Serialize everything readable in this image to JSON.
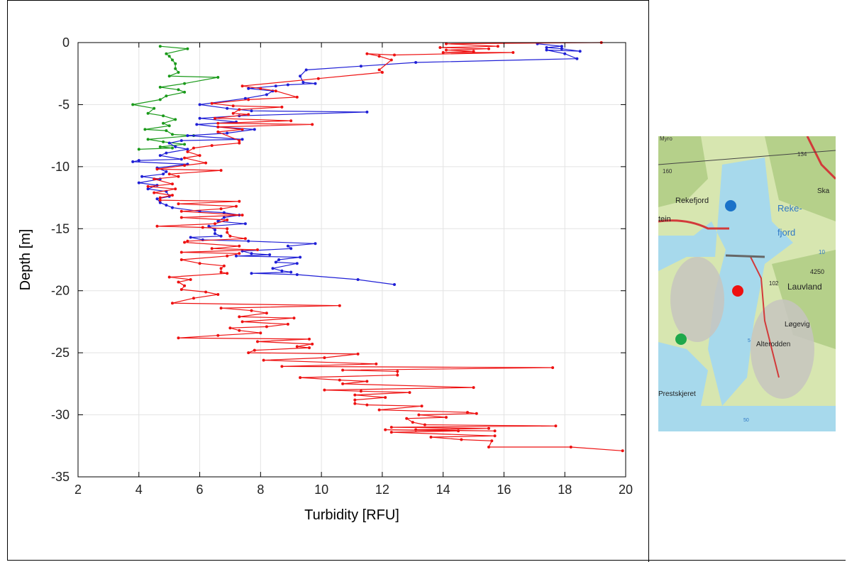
{
  "chart_data": {
    "type": "line",
    "xlabel": "Turbidity [RFU]",
    "ylabel": "Depth [m]",
    "xlim": [
      2,
      20
    ],
    "ylim": [
      -35,
      0
    ],
    "xticks": [
      2,
      4,
      6,
      8,
      10,
      12,
      14,
      16,
      18,
      20
    ],
    "yticks": [
      0,
      -5,
      -10,
      -15,
      -20,
      -25,
      -30,
      -35
    ],
    "grid": true,
    "series": [
      {
        "color": "#1a9a1a",
        "points": [
          [
            4.7,
            -0.3
          ],
          [
            5.6,
            -0.5
          ],
          [
            4.9,
            -0.9
          ],
          [
            5.0,
            -1.1
          ],
          [
            5.1,
            -1.4
          ],
          [
            5.2,
            -1.7
          ],
          [
            5.2,
            -2.1
          ],
          [
            5.3,
            -2.4
          ],
          [
            5.0,
            -2.7
          ],
          [
            6.6,
            -2.8
          ],
          [
            5.5,
            -3.3
          ],
          [
            4.7,
            -3.6
          ],
          [
            5.3,
            -3.8
          ],
          [
            5.5,
            -4.0
          ],
          [
            4.9,
            -4.3
          ],
          [
            4.7,
            -4.6
          ],
          [
            3.8,
            -5.0
          ],
          [
            4.5,
            -5.3
          ],
          [
            4.3,
            -5.7
          ],
          [
            4.8,
            -5.9
          ],
          [
            5.2,
            -6.2
          ],
          [
            4.8,
            -6.5
          ],
          [
            5.0,
            -6.7
          ],
          [
            4.2,
            -7.0
          ],
          [
            4.9,
            -7.1
          ],
          [
            5.1,
            -7.4
          ],
          [
            5.8,
            -7.5
          ],
          [
            4.3,
            -7.8
          ],
          [
            4.8,
            -8.0
          ],
          [
            5.5,
            -8.2
          ],
          [
            4.7,
            -8.4
          ],
          [
            5.1,
            -8.5
          ],
          [
            4.0,
            -8.6
          ]
        ]
      },
      {
        "color": "#1f1fd6",
        "points": [
          [
            17.1,
            -0.1
          ],
          [
            17.9,
            -0.3
          ],
          [
            17.4,
            -0.4
          ],
          [
            17.9,
            -0.5
          ],
          [
            18.5,
            -0.7
          ],
          [
            17.4,
            -0.6
          ],
          [
            18.0,
            -0.9
          ],
          [
            18.4,
            -1.3
          ],
          [
            13.1,
            -1.6
          ],
          [
            11.3,
            -1.9
          ],
          [
            9.5,
            -2.2
          ],
          [
            9.3,
            -2.7
          ],
          [
            9.4,
            -3.2
          ],
          [
            9.8,
            -3.3
          ],
          [
            8.9,
            -3.4
          ],
          [
            8.5,
            -3.5
          ],
          [
            7.6,
            -3.7
          ],
          [
            8.4,
            -3.9
          ],
          [
            8.2,
            -4.2
          ],
          [
            7.5,
            -4.5
          ],
          [
            6.0,
            -5.0
          ],
          [
            6.9,
            -5.3
          ],
          [
            7.7,
            -5.5
          ],
          [
            11.5,
            -5.6
          ],
          [
            7.3,
            -5.9
          ],
          [
            6.0,
            -6.1
          ],
          [
            7.2,
            -6.4
          ],
          [
            5.9,
            -6.6
          ],
          [
            6.6,
            -6.8
          ],
          [
            7.8,
            -7.0
          ],
          [
            6.9,
            -7.3
          ],
          [
            5.6,
            -7.5
          ],
          [
            7.4,
            -7.8
          ],
          [
            5.4,
            -7.9
          ],
          [
            5.0,
            -8.1
          ],
          [
            5.2,
            -8.4
          ],
          [
            5.6,
            -8.6
          ],
          [
            4.9,
            -8.9
          ],
          [
            4.7,
            -9.1
          ],
          [
            5.4,
            -9.4
          ],
          [
            4.0,
            -9.5
          ],
          [
            3.8,
            -9.6
          ],
          [
            5.6,
            -9.8
          ],
          [
            4.6,
            -10.1
          ],
          [
            4.9,
            -10.4
          ],
          [
            4.8,
            -10.6
          ],
          [
            4.1,
            -10.8
          ],
          [
            4.7,
            -11.0
          ],
          [
            4.0,
            -11.3
          ],
          [
            4.6,
            -11.5
          ],
          [
            4.3,
            -11.8
          ],
          [
            4.9,
            -12.0
          ],
          [
            5.0,
            -12.4
          ],
          [
            4.6,
            -12.6
          ],
          [
            4.7,
            -12.9
          ],
          [
            4.9,
            -13.1
          ],
          [
            5.1,
            -13.3
          ],
          [
            6.0,
            -13.6
          ],
          [
            6.8,
            -13.7
          ],
          [
            7.3,
            -13.9
          ],
          [
            6.8,
            -14.1
          ],
          [
            6.6,
            -14.4
          ],
          [
            7.5,
            -14.6
          ],
          [
            6.3,
            -14.8
          ],
          [
            6.5,
            -15.1
          ],
          [
            6.5,
            -15.4
          ],
          [
            6.7,
            -15.6
          ],
          [
            5.7,
            -15.7
          ],
          [
            6.1,
            -15.9
          ],
          [
            7.6,
            -16.0
          ],
          [
            9.8,
            -16.2
          ],
          [
            8.9,
            -16.4
          ],
          [
            9.0,
            -16.6
          ],
          [
            7.4,
            -16.8
          ],
          [
            7.7,
            -17.0
          ],
          [
            8.3,
            -17.1
          ],
          [
            7.2,
            -17.2
          ],
          [
            9.3,
            -17.3
          ],
          [
            8.6,
            -17.5
          ],
          [
            8.5,
            -17.7
          ],
          [
            9.2,
            -17.8
          ],
          [
            8.4,
            -18.2
          ],
          [
            8.7,
            -18.4
          ],
          [
            9.0,
            -18.5
          ],
          [
            7.7,
            -18.6
          ],
          [
            9.2,
            -18.7
          ],
          [
            11.2,
            -19.1
          ],
          [
            12.4,
            -19.5
          ]
        ]
      },
      {
        "color": "#ee1111",
        "points": [
          [
            19.2,
            0.0
          ],
          [
            14.1,
            -0.1
          ],
          [
            15.8,
            -0.3
          ],
          [
            13.9,
            -0.4
          ],
          [
            15.5,
            -0.5
          ],
          [
            14.1,
            -0.6
          ],
          [
            15.0,
            -0.7
          ],
          [
            14.0,
            -0.8
          ],
          [
            16.3,
            -0.8
          ],
          [
            12.4,
            -1.0
          ],
          [
            11.5,
            -0.9
          ],
          [
            11.9,
            -1.1
          ],
          [
            12.3,
            -1.4
          ],
          [
            11.9,
            -2.2
          ],
          [
            12.0,
            -2.4
          ],
          [
            9.9,
            -2.9
          ],
          [
            7.4,
            -3.5
          ],
          [
            8.0,
            -3.7
          ],
          [
            8.5,
            -3.9
          ],
          [
            9.2,
            -4.4
          ],
          [
            7.6,
            -4.6
          ],
          [
            6.4,
            -4.9
          ],
          [
            7.1,
            -5.1
          ],
          [
            8.7,
            -5.2
          ],
          [
            7.3,
            -5.4
          ],
          [
            7.1,
            -5.7
          ],
          [
            7.6,
            -5.8
          ],
          [
            6.5,
            -6.1
          ],
          [
            9.0,
            -6.3
          ],
          [
            6.6,
            -6.5
          ],
          [
            9.7,
            -6.6
          ],
          [
            6.6,
            -6.8
          ],
          [
            7.4,
            -7.0
          ],
          [
            6.6,
            -7.2
          ],
          [
            7.3,
            -7.9
          ],
          [
            7.3,
            -8.1
          ],
          [
            6.4,
            -8.3
          ],
          [
            5.8,
            -8.5
          ],
          [
            5.6,
            -8.8
          ],
          [
            6.0,
            -9.1
          ],
          [
            5.5,
            -9.3
          ],
          [
            6.2,
            -9.7
          ],
          [
            5.5,
            -9.9
          ],
          [
            4.6,
            -10.2
          ],
          [
            6.7,
            -10.3
          ],
          [
            5.0,
            -10.6
          ],
          [
            5.3,
            -10.8
          ],
          [
            4.5,
            -11.0
          ],
          [
            5.1,
            -11.4
          ],
          [
            4.3,
            -11.6
          ],
          [
            5.2,
            -11.8
          ],
          [
            4.5,
            -12.1
          ],
          [
            5.1,
            -12.3
          ],
          [
            4.7,
            -12.5
          ],
          [
            4.7,
            -12.7
          ],
          [
            7.3,
            -12.8
          ],
          [
            5.3,
            -13.0
          ],
          [
            7.2,
            -13.2
          ],
          [
            6.7,
            -13.4
          ],
          [
            5.4,
            -13.6
          ],
          [
            7.4,
            -13.9
          ],
          [
            5.4,
            -14.1
          ],
          [
            6.9,
            -14.3
          ],
          [
            6.5,
            -14.6
          ],
          [
            4.6,
            -14.8
          ],
          [
            6.1,
            -14.9
          ],
          [
            6.9,
            -15.0
          ],
          [
            6.9,
            -15.3
          ],
          [
            7.0,
            -15.6
          ],
          [
            7.5,
            -15.8
          ],
          [
            5.6,
            -16.0
          ],
          [
            5.5,
            -16.1
          ],
          [
            7.3,
            -16.4
          ],
          [
            6.4,
            -16.6
          ],
          [
            7.9,
            -16.7
          ],
          [
            5.4,
            -16.9
          ],
          [
            7.3,
            -17.0
          ],
          [
            6.9,
            -17.2
          ],
          [
            5.4,
            -17.5
          ],
          [
            6.0,
            -17.8
          ],
          [
            6.8,
            -18.0
          ],
          [
            6.7,
            -18.2
          ],
          [
            6.7,
            -18.5
          ],
          [
            6.9,
            -18.6
          ],
          [
            5.0,
            -18.9
          ],
          [
            5.7,
            -19.1
          ],
          [
            5.3,
            -19.3
          ],
          [
            5.5,
            -19.6
          ],
          [
            5.4,
            -19.9
          ],
          [
            6.2,
            -20.1
          ],
          [
            6.6,
            -20.3
          ],
          [
            5.8,
            -20.6
          ],
          [
            5.1,
            -21.0
          ],
          [
            10.6,
            -21.2
          ],
          [
            6.7,
            -21.4
          ],
          [
            7.7,
            -21.6
          ],
          [
            8.2,
            -21.8
          ],
          [
            7.3,
            -22.1
          ],
          [
            9.1,
            -22.2
          ],
          [
            7.4,
            -22.5
          ],
          [
            8.9,
            -22.7
          ],
          [
            8.2,
            -22.9
          ],
          [
            7.0,
            -23.0
          ],
          [
            7.3,
            -23.2
          ],
          [
            8.0,
            -23.4
          ],
          [
            6.6,
            -23.6
          ],
          [
            5.3,
            -23.8
          ],
          [
            9.6,
            -23.9
          ],
          [
            7.9,
            -24.1
          ],
          [
            9.7,
            -24.3
          ],
          [
            9.2,
            -24.5
          ],
          [
            9.6,
            -24.6
          ],
          [
            7.8,
            -24.8
          ],
          [
            7.6,
            -25.0
          ],
          [
            11.2,
            -25.1
          ],
          [
            10.1,
            -25.4
          ],
          [
            8.1,
            -25.6
          ],
          [
            11.8,
            -25.9
          ],
          [
            8.7,
            -26.1
          ],
          [
            17.6,
            -26.2
          ],
          [
            10.7,
            -26.4
          ],
          [
            12.5,
            -26.5
          ],
          [
            12.5,
            -26.8
          ],
          [
            9.3,
            -27.0
          ],
          [
            10.6,
            -27.2
          ],
          [
            11.5,
            -27.3
          ],
          [
            10.7,
            -27.5
          ],
          [
            15.0,
            -27.8
          ],
          [
            10.1,
            -28.0
          ],
          [
            11.3,
            -28.1
          ],
          [
            12.9,
            -28.2
          ],
          [
            11.1,
            -28.4
          ],
          [
            12.1,
            -28.6
          ],
          [
            11.1,
            -28.8
          ],
          [
            11.1,
            -29.1
          ],
          [
            11.5,
            -29.2
          ],
          [
            13.3,
            -29.3
          ],
          [
            11.9,
            -29.6
          ],
          [
            14.8,
            -29.8
          ],
          [
            15.1,
            -29.9
          ],
          [
            13.2,
            -30.0
          ],
          [
            14.1,
            -30.2
          ],
          [
            12.8,
            -30.3
          ],
          [
            13.0,
            -30.6
          ],
          [
            13.4,
            -30.8
          ],
          [
            17.7,
            -30.9
          ],
          [
            12.3,
            -31.0
          ],
          [
            15.5,
            -31.1
          ],
          [
            13.1,
            -31.2
          ],
          [
            15.7,
            -31.3
          ],
          [
            12.1,
            -31.2
          ],
          [
            14.5,
            -31.3
          ],
          [
            12.3,
            -31.4
          ],
          [
            15.7,
            -31.7
          ],
          [
            13.6,
            -31.8
          ],
          [
            14.6,
            -32.0
          ],
          [
            15.6,
            -32.1
          ],
          [
            15.5,
            -32.6
          ],
          [
            18.2,
            -32.6
          ],
          [
            19.9,
            -32.9
          ]
        ]
      }
    ],
    "legend_markers": [
      {
        "color": "#1a72c9",
        "label": ""
      },
      {
        "color": "#ee1111",
        "label": ""
      },
      {
        "color": "#1ea84b",
        "label": ""
      }
    ]
  },
  "map": {
    "labels": [
      "Myro",
      "134",
      "160",
      "Rekefjord",
      "Ska",
      "Reke-",
      "fjord",
      "tein",
      "10",
      "4250",
      "102",
      "Lauvland",
      "Løgevig",
      "Alterodden",
      "Prestskjeret",
      "5",
      "50"
    ],
    "colors": {
      "water": "#a7d9ec",
      "land": "#d7e6b0",
      "forest": "#b5d08a",
      "road": "#d23a3a",
      "rock": "#c7c4bf"
    }
  }
}
